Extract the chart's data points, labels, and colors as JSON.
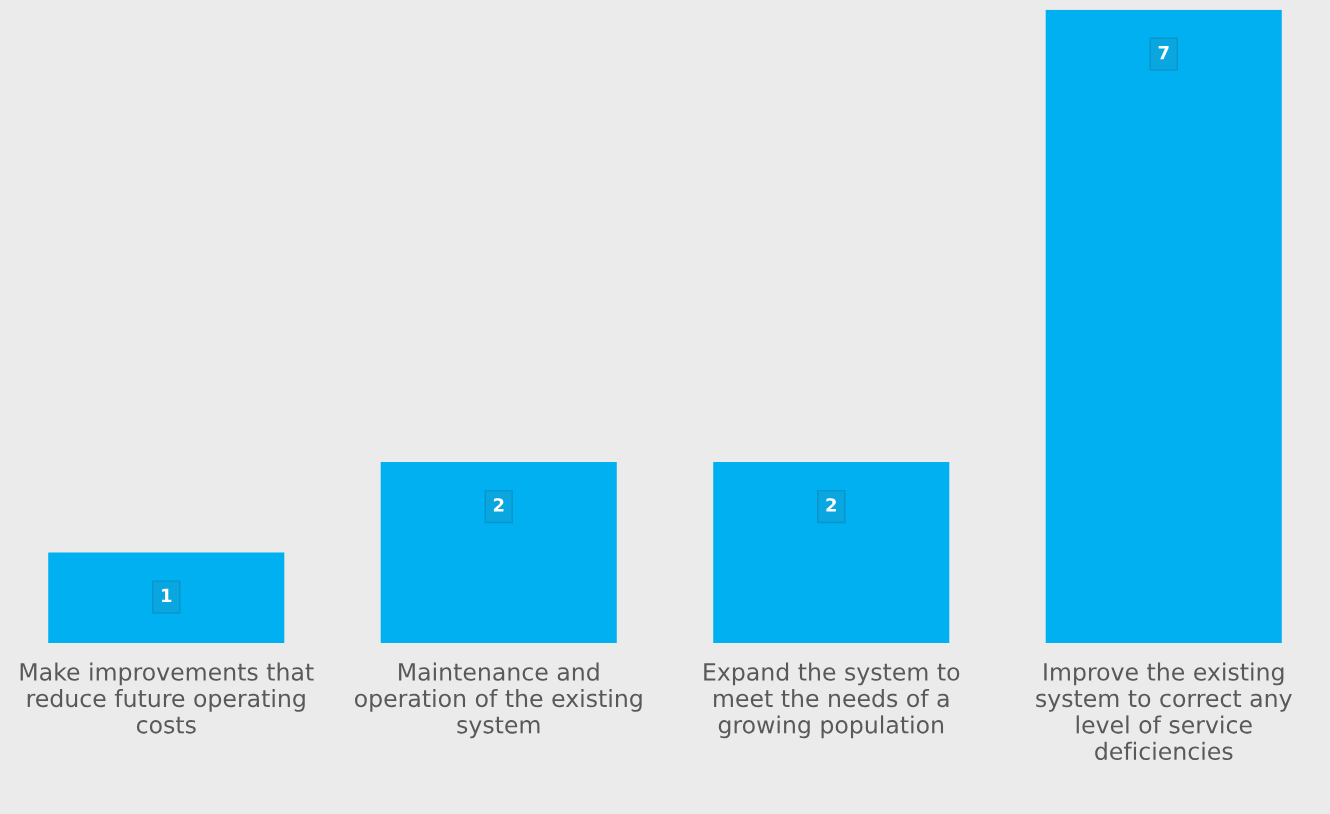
{
  "chart_data": {
    "type": "bar",
    "categories": [
      "Make improvements that\nreduce future operating\ncosts",
      "Maintenance and\noperation of the existing\nsystem",
      "Expand the system to\nmeet the needs of a\ngrowing population",
      "Improve the existing\nsystem to correct any\nlevel of service\ndeficiencies"
    ],
    "values": [
      1,
      2,
      2,
      7
    ],
    "color": "#00b0f0",
    "data_labels": true,
    "grid": false,
    "legend": false
  }
}
